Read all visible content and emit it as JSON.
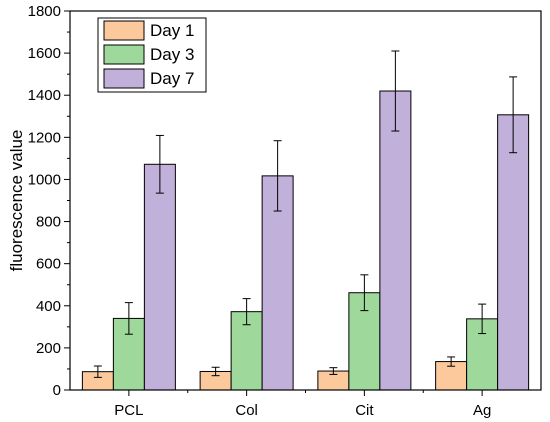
{
  "chart_data": {
    "type": "bar",
    "xlabel": "",
    "ylabel": "fluorescence value",
    "ylim": [
      0,
      1800
    ],
    "yticks": [
      0,
      200,
      400,
      600,
      800,
      1000,
      1200,
      1400,
      1600,
      1800
    ],
    "categories": [
      "PCL",
      "Col",
      "Cit",
      "Ag"
    ],
    "series": [
      {
        "name": "Day 1",
        "color": "#FCC99C",
        "values": [
          87,
          88,
          90,
          135
        ],
        "errors": [
          27,
          20,
          16,
          22
        ]
      },
      {
        "name": "Day 3",
        "color": "#9ED99B",
        "values": [
          340,
          372,
          462,
          338
        ],
        "errors": [
          75,
          62,
          85,
          70
        ]
      },
      {
        "name": "Day 7",
        "color": "#C1B0D9",
        "values": [
          1072,
          1017,
          1420,
          1307
        ],
        "errors": [
          137,
          167,
          190,
          180
        ]
      }
    ],
    "legend": {
      "position": "top-left",
      "frame": true
    },
    "grid": false,
    "error_bars": true
  }
}
